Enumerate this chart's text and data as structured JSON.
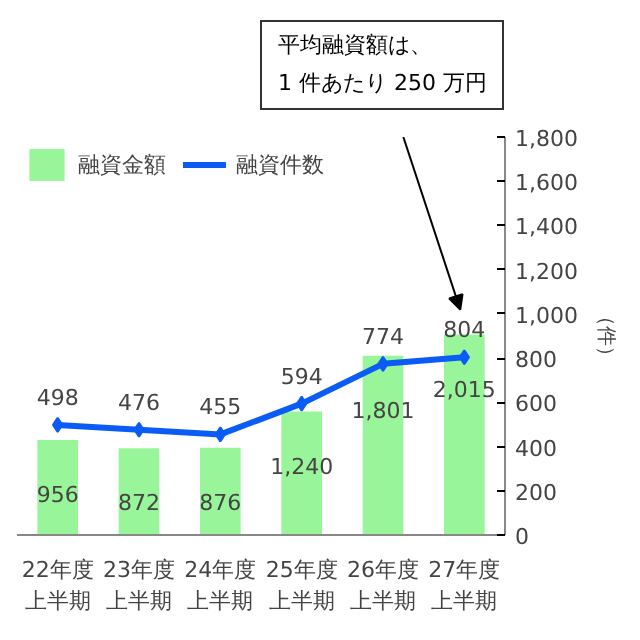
{
  "chart_data": {
    "type": "bar",
    "categories": [
      "22年度上半期",
      "23年度上半期",
      "24年度上半期",
      "25年度上半期",
      "26年度上半期",
      "27年度上半期"
    ],
    "series": [
      {
        "name": "融資金額",
        "color": "#99f599",
        "values": [
          956,
          872,
          876,
          1240,
          1801,
          2015
        ],
        "value_labels": [
          "956",
          "872",
          "876",
          "1,240",
          "1,801",
          "2,015"
        ]
      },
      {
        "name": "融資件数",
        "type": "line",
        "axis": "y2",
        "color": "#0a5cf5",
        "marker": "diamond",
        "values": [
          498,
          476,
          455,
          594,
          774,
          804
        ],
        "value_labels": [
          "498",
          "476",
          "455",
          "594",
          "774",
          "804"
        ]
      }
    ],
    "ylim": [
      0,
      4000
    ],
    "y2lim": [
      0,
      1800
    ],
    "y2ticks": [
      0,
      200,
      {
        "value": 400,
        "label": "400"
      },
      600,
      800,
      {
        "value": 1000,
        "label": "1,000"
      },
      {
        "value": 1200,
        "label": "1,200"
      },
      {
        "value": 1400,
        "label": "1,400"
      },
      {
        "value": 1600,
        "label": "1,600"
      },
      {
        "value": 1800,
        "label": "1,800"
      }
    ],
    "y2label": "（件）",
    "annotations": [
      "平均融資額は、\n1 件あたり 250 万円"
    ],
    "legend": "top left",
    "grid": false
  }
}
